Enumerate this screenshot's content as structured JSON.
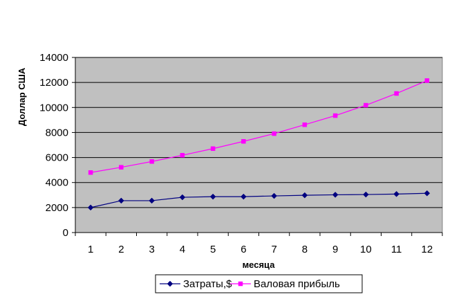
{
  "chart_data": {
    "type": "line",
    "title": "",
    "xlabel": "месяца",
    "ylabel": "Доллар США",
    "categories": [
      "1",
      "2",
      "3",
      "4",
      "5",
      "6",
      "7",
      "8",
      "9",
      "10",
      "11",
      "12"
    ],
    "ylim": [
      0,
      14000
    ],
    "yticks": [
      0,
      2000,
      4000,
      6000,
      8000,
      10000,
      12000,
      14000
    ],
    "ytick_labels": [
      "0",
      "2000",
      "4000",
      "6000",
      "8000",
      "10000",
      "12000",
      "14000"
    ],
    "grid": true,
    "plot_background": "#c0c0c0",
    "legend_position": "bottom",
    "series": [
      {
        "name": "Затраты,$",
        "color": "#000080",
        "marker": "diamond",
        "values": [
          2000,
          2550,
          2550,
          2820,
          2870,
          2870,
          2930,
          2980,
          3020,
          3040,
          3080,
          3140
        ]
      },
      {
        "name": "Валовая прибыль",
        "color": "#ff00ff",
        "marker": "square",
        "values": [
          4800,
          5220,
          5680,
          6180,
          6710,
          7290,
          7910,
          8620,
          9350,
          10180,
          11120,
          12150
        ]
      }
    ]
  }
}
